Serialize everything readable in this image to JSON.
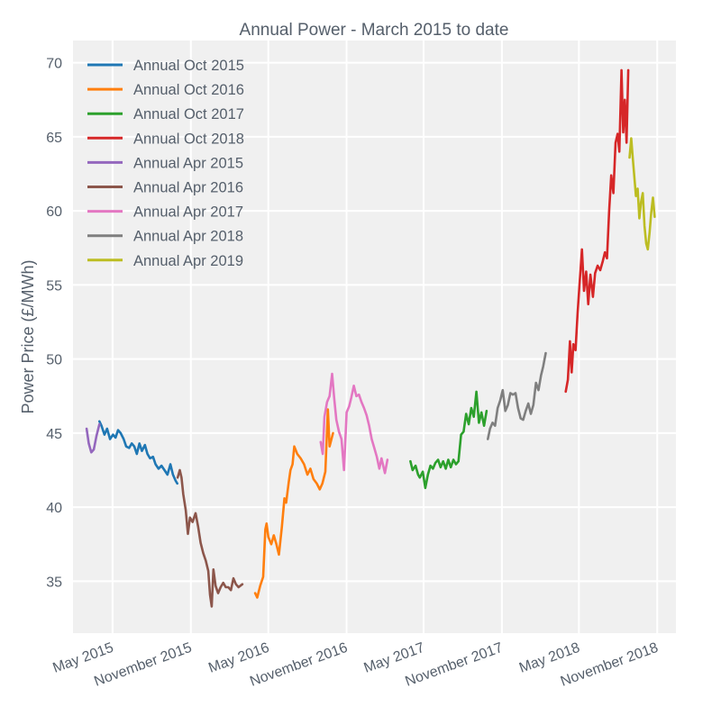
{
  "chart_data": {
    "type": "line",
    "title": "Annual Power - March 2015 to date",
    "xlabel": "",
    "ylabel": "Power Price (£/MWh)",
    "ylim": [
      31.5,
      71.5
    ],
    "xlim": [
      "2015-01-28",
      "2018-12-15"
    ],
    "grid": true,
    "legend_position": "top-left",
    "y_ticks": [
      35,
      40,
      45,
      50,
      55,
      60,
      65,
      70
    ],
    "x_ticks": [
      {
        "date": "2015-05-01",
        "label": "May 2015"
      },
      {
        "date": "2015-11-01",
        "label": "November 2015"
      },
      {
        "date": "2016-05-01",
        "label": "May 2016"
      },
      {
        "date": "2016-11-01",
        "label": "November 2016"
      },
      {
        "date": "2017-05-01",
        "label": "May 2017"
      },
      {
        "date": "2017-11-01",
        "label": "November 2017"
      },
      {
        "date": "2018-05-01",
        "label": "May 2018"
      },
      {
        "date": "2018-11-01",
        "label": "November 2018"
      }
    ],
    "series": [
      {
        "name": "Annual Oct 2015",
        "color": "#1f77b4",
        "points": [
          [
            "2015-03-31",
            45.8
          ],
          [
            "2015-04-05",
            45.5
          ],
          [
            "2015-04-12",
            44.9
          ],
          [
            "2015-04-18",
            45.3
          ],
          [
            "2015-04-25",
            44.6
          ],
          [
            "2015-05-02",
            44.9
          ],
          [
            "2015-05-08",
            44.7
          ],
          [
            "2015-05-14",
            45.2
          ],
          [
            "2015-05-20",
            45.0
          ],
          [
            "2015-05-27",
            44.6
          ],
          [
            "2015-06-02",
            44.1
          ],
          [
            "2015-06-09",
            44.0
          ],
          [
            "2015-06-15",
            44.3
          ],
          [
            "2015-06-21",
            44.1
          ],
          [
            "2015-06-27",
            43.6
          ],
          [
            "2015-07-03",
            44.3
          ],
          [
            "2015-07-09",
            43.8
          ],
          [
            "2015-07-16",
            44.2
          ],
          [
            "2015-07-22",
            43.6
          ],
          [
            "2015-07-28",
            43.3
          ],
          [
            "2015-08-04",
            43.4
          ],
          [
            "2015-08-10",
            42.9
          ],
          [
            "2015-08-17",
            42.6
          ],
          [
            "2015-08-24",
            42.8
          ],
          [
            "2015-08-31",
            42.5
          ],
          [
            "2015-09-07",
            42.2
          ],
          [
            "2015-09-14",
            42.9
          ],
          [
            "2015-09-20",
            42.2
          ],
          [
            "2015-09-26",
            41.8
          ],
          [
            "2015-09-30",
            41.6
          ]
        ]
      },
      {
        "name": "Annual Oct 2016",
        "color": "#ff7f0e",
        "points": [
          [
            "2016-03-31",
            34.2
          ],
          [
            "2016-04-05",
            33.9
          ],
          [
            "2016-04-12",
            34.7
          ],
          [
            "2016-04-19",
            35.3
          ],
          [
            "2016-04-24",
            38.5
          ],
          [
            "2016-04-27",
            38.9
          ],
          [
            "2016-05-01",
            38.0
          ],
          [
            "2016-05-08",
            37.5
          ],
          [
            "2016-05-14",
            38.1
          ],
          [
            "2016-05-20",
            37.5
          ],
          [
            "2016-05-26",
            36.8
          ],
          [
            "2016-06-02",
            38.7
          ],
          [
            "2016-06-08",
            40.6
          ],
          [
            "2016-06-12",
            40.3
          ],
          [
            "2016-06-18",
            41.7
          ],
          [
            "2016-06-22",
            42.5
          ],
          [
            "2016-06-27",
            42.9
          ],
          [
            "2016-07-01",
            44.1
          ],
          [
            "2016-07-08",
            43.6
          ],
          [
            "2016-07-16",
            43.3
          ],
          [
            "2016-07-24",
            42.9
          ],
          [
            "2016-08-01",
            42.2
          ],
          [
            "2016-08-08",
            42.6
          ],
          [
            "2016-08-15",
            41.9
          ],
          [
            "2016-08-23",
            41.6
          ],
          [
            "2016-08-30",
            41.2
          ],
          [
            "2016-09-05",
            41.6
          ],
          [
            "2016-09-12",
            42.4
          ],
          [
            "2016-09-18",
            46.6
          ],
          [
            "2016-09-22",
            44.1
          ],
          [
            "2016-09-30",
            45.0
          ]
        ]
      },
      {
        "name": "Annual Oct 2017",
        "color": "#2ca02c",
        "points": [
          [
            "2017-03-31",
            43.1
          ],
          [
            "2017-04-05",
            42.5
          ],
          [
            "2017-04-12",
            42.8
          ],
          [
            "2017-04-18",
            42.2
          ],
          [
            "2017-04-22",
            42.0
          ],
          [
            "2017-04-29",
            42.4
          ],
          [
            "2017-05-05",
            41.3
          ],
          [
            "2017-05-11",
            42.2
          ],
          [
            "2017-05-17",
            42.8
          ],
          [
            "2017-05-23",
            42.6
          ],
          [
            "2017-05-29",
            43.0
          ],
          [
            "2017-06-04",
            43.2
          ],
          [
            "2017-06-10",
            42.7
          ],
          [
            "2017-06-16",
            43.1
          ],
          [
            "2017-06-22",
            42.6
          ],
          [
            "2017-06-28",
            43.2
          ],
          [
            "2017-07-04",
            42.7
          ],
          [
            "2017-07-10",
            43.2
          ],
          [
            "2017-07-16",
            42.9
          ],
          [
            "2017-07-22",
            43.1
          ],
          [
            "2017-07-28",
            44.9
          ],
          [
            "2017-08-03",
            45.1
          ],
          [
            "2017-08-09",
            46.3
          ],
          [
            "2017-08-15",
            45.6
          ],
          [
            "2017-08-21",
            46.7
          ],
          [
            "2017-08-27",
            46.1
          ],
          [
            "2017-09-02",
            47.8
          ],
          [
            "2017-09-08",
            45.7
          ],
          [
            "2017-09-14",
            46.4
          ],
          [
            "2017-09-20",
            45.5
          ],
          [
            "2017-09-26",
            46.5
          ]
        ]
      },
      {
        "name": "Annual Oct 2018",
        "color": "#d62728",
        "points": [
          [
            "2018-03-31",
            47.8
          ],
          [
            "2018-04-05",
            48.6
          ],
          [
            "2018-04-10",
            51.2
          ],
          [
            "2018-04-14",
            49.1
          ],
          [
            "2018-04-18",
            51.0
          ],
          [
            "2018-04-23",
            50.6
          ],
          [
            "2018-04-28",
            53.1
          ],
          [
            "2018-05-03",
            55.3
          ],
          [
            "2018-05-08",
            57.4
          ],
          [
            "2018-05-13",
            54.6
          ],
          [
            "2018-05-18",
            55.9
          ],
          [
            "2018-05-23",
            53.7
          ],
          [
            "2018-05-28",
            55.7
          ],
          [
            "2018-06-03",
            54.2
          ],
          [
            "2018-06-08",
            55.8
          ],
          [
            "2018-06-14",
            56.3
          ],
          [
            "2018-06-20",
            56.0
          ],
          [
            "2018-06-26",
            56.6
          ],
          [
            "2018-07-01",
            57.2
          ],
          [
            "2018-07-06",
            56.8
          ],
          [
            "2018-07-11",
            60.0
          ],
          [
            "2018-07-16",
            62.4
          ],
          [
            "2018-07-21",
            61.2
          ],
          [
            "2018-07-26",
            64.6
          ],
          [
            "2018-07-31",
            65.2
          ],
          [
            "2018-08-04",
            64.0
          ],
          [
            "2018-08-09",
            69.5
          ],
          [
            "2018-08-13",
            65.3
          ],
          [
            "2018-08-17",
            67.5
          ],
          [
            "2018-08-21",
            64.6
          ],
          [
            "2018-08-25",
            69.5
          ]
        ]
      },
      {
        "name": "Annual Apr 2015",
        "color": "#9467bd",
        "points": [
          [
            "2015-03-01",
            45.3
          ],
          [
            "2015-03-06",
            44.3
          ],
          [
            "2015-03-12",
            43.7
          ],
          [
            "2015-03-18",
            43.9
          ],
          [
            "2015-03-24",
            44.8
          ],
          [
            "2015-03-31",
            45.6
          ]
        ]
      },
      {
        "name": "Annual Apr 2016",
        "color": "#8c564b",
        "points": [
          [
            "2015-10-01",
            42.0
          ],
          [
            "2015-10-06",
            42.5
          ],
          [
            "2015-10-10",
            42.0
          ],
          [
            "2015-10-14",
            40.9
          ],
          [
            "2015-10-20",
            39.8
          ],
          [
            "2015-10-25",
            38.2
          ],
          [
            "2015-10-30",
            39.3
          ],
          [
            "2015-11-05",
            39.0
          ],
          [
            "2015-11-12",
            39.6
          ],
          [
            "2015-11-18",
            38.7
          ],
          [
            "2015-11-24",
            37.6
          ],
          [
            "2015-11-30",
            36.9
          ],
          [
            "2015-12-06",
            36.4
          ],
          [
            "2015-12-12",
            35.7
          ],
          [
            "2015-12-16",
            34.1
          ],
          [
            "2015-12-20",
            33.3
          ],
          [
            "2015-12-24",
            35.8
          ],
          [
            "2015-12-29",
            34.7
          ],
          [
            "2016-01-04",
            34.2
          ],
          [
            "2016-01-10",
            34.6
          ],
          [
            "2016-01-16",
            34.9
          ],
          [
            "2016-01-22",
            34.6
          ],
          [
            "2016-01-28",
            34.6
          ],
          [
            "2016-02-03",
            34.4
          ],
          [
            "2016-02-09",
            35.2
          ],
          [
            "2016-02-15",
            34.8
          ],
          [
            "2016-02-21",
            34.6
          ],
          [
            "2016-03-01",
            34.8
          ]
        ]
      },
      {
        "name": "Annual Apr 2017",
        "color": "#e377c2",
        "points": [
          [
            "2016-09-01",
            44.4
          ],
          [
            "2016-09-06",
            43.6
          ],
          [
            "2016-09-10",
            46.1
          ],
          [
            "2016-09-16",
            47.1
          ],
          [
            "2016-09-22",
            47.5
          ],
          [
            "2016-09-28",
            49.0
          ],
          [
            "2016-10-03",
            47.3
          ],
          [
            "2016-10-08",
            45.9
          ],
          [
            "2016-10-14",
            45.1
          ],
          [
            "2016-10-20",
            44.6
          ],
          [
            "2016-10-26",
            42.5
          ],
          [
            "2016-11-01",
            46.4
          ],
          [
            "2016-11-07",
            46.8
          ],
          [
            "2016-11-12",
            47.4
          ],
          [
            "2016-11-18",
            48.2
          ],
          [
            "2016-11-24",
            47.5
          ],
          [
            "2016-11-30",
            47.6
          ],
          [
            "2016-12-06",
            47.1
          ],
          [
            "2016-12-12",
            46.7
          ],
          [
            "2016-12-18",
            46.2
          ],
          [
            "2016-12-24",
            45.5
          ],
          [
            "2016-12-30",
            44.6
          ],
          [
            "2017-01-05",
            44.0
          ],
          [
            "2017-01-11",
            43.4
          ],
          [
            "2017-01-17",
            42.6
          ],
          [
            "2017-01-22",
            43.3
          ],
          [
            "2017-01-30",
            42.3
          ],
          [
            "2017-02-05",
            43.2
          ]
        ]
      },
      {
        "name": "Annual Apr 2018",
        "color": "#7f7f7f",
        "points": [
          [
            "2017-09-29",
            44.6
          ],
          [
            "2017-10-04",
            45.3
          ],
          [
            "2017-10-10",
            45.7
          ],
          [
            "2017-10-16",
            45.5
          ],
          [
            "2017-10-22",
            46.7
          ],
          [
            "2017-10-28",
            47.2
          ],
          [
            "2017-11-03",
            47.9
          ],
          [
            "2017-11-09",
            46.5
          ],
          [
            "2017-11-15",
            46.9
          ],
          [
            "2017-11-21",
            47.7
          ],
          [
            "2017-11-27",
            47.6
          ],
          [
            "2017-12-03",
            47.7
          ],
          [
            "2017-12-09",
            46.7
          ],
          [
            "2017-12-15",
            46.0
          ],
          [
            "2017-12-21",
            45.9
          ],
          [
            "2017-12-27",
            46.5
          ],
          [
            "2018-01-02",
            47.0
          ],
          [
            "2018-01-08",
            46.3
          ],
          [
            "2018-01-14",
            46.9
          ],
          [
            "2018-01-20",
            48.4
          ],
          [
            "2018-01-26",
            47.9
          ],
          [
            "2018-02-01",
            48.9
          ],
          [
            "2018-02-06",
            49.5
          ],
          [
            "2018-02-12",
            50.4
          ]
        ]
      },
      {
        "name": "Annual Apr 2019",
        "color": "#bcbd22",
        "points": [
          [
            "2018-08-28",
            63.6
          ],
          [
            "2018-09-01",
            64.9
          ],
          [
            "2018-09-04",
            63.8
          ],
          [
            "2018-09-08",
            62.4
          ],
          [
            "2018-09-12",
            61.0
          ],
          [
            "2018-09-16",
            61.5
          ],
          [
            "2018-09-20",
            59.5
          ],
          [
            "2018-09-24",
            60.6
          ],
          [
            "2018-09-28",
            61.2
          ],
          [
            "2018-10-02",
            59.0
          ],
          [
            "2018-10-06",
            57.8
          ],
          [
            "2018-10-10",
            57.4
          ],
          [
            "2018-10-14",
            58.5
          ],
          [
            "2018-10-18",
            59.9
          ],
          [
            "2018-10-22",
            60.9
          ],
          [
            "2018-10-26",
            59.6
          ]
        ]
      }
    ]
  }
}
